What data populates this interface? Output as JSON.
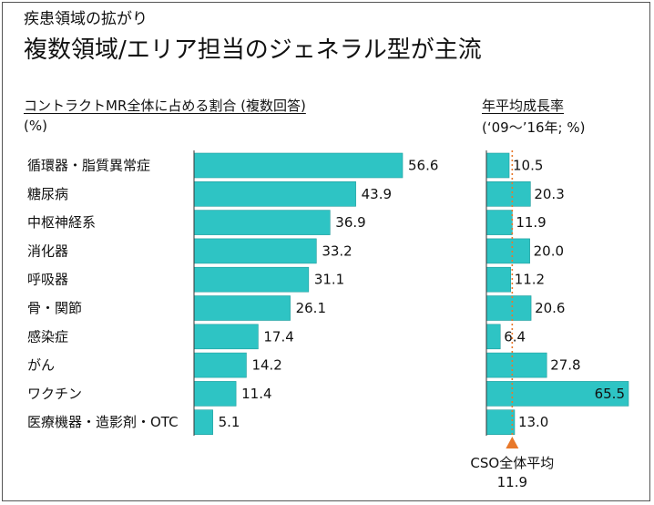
{
  "subtitle": "疾患領域の拡がり",
  "title": "複数領域/エリア担当のジェネラル型が主流",
  "left_header": "コントラクトMR全体に占める割合 (複数回答)",
  "left_unit": "(%)",
  "right_header": "年平均成長率",
  "right_unit": "(‘09～’16年; %)",
  "reference": {
    "label": "CSO全体平均",
    "value": 11.9
  },
  "colors": {
    "bar": "#2ec4c4",
    "bar_stroke": "#1f9d9d",
    "reference": "#e8782a"
  },
  "chart_data": [
    {
      "type": "bar",
      "orientation": "horizontal",
      "categories": [
        "循環器・脂質異常症",
        "糖尿病",
        "中枢神経系",
        "消化器",
        "呼吸器",
        "骨・関節",
        "感染症",
        "がん",
        "ワクチン",
        "医療機器・造影剤・OTC"
      ],
      "values": [
        56.6,
        43.9,
        36.9,
        33.2,
        31.1,
        26.1,
        17.4,
        14.2,
        11.4,
        5.1
      ],
      "title": "コントラクトMR全体に占める割合 (複数回答)",
      "ylabel": "(%)",
      "xlim": [
        0,
        60
      ]
    },
    {
      "type": "bar",
      "orientation": "horizontal",
      "categories": [
        "循環器・脂質異常症",
        "糖尿病",
        "中枢神経系",
        "消化器",
        "呼吸器",
        "骨・関節",
        "感染症",
        "がん",
        "ワクチン",
        "医療機器・造影剤・OTC"
      ],
      "values": [
        10.5,
        20.3,
        11.9,
        20.0,
        11.2,
        20.6,
        6.4,
        27.8,
        65.5,
        13.0
      ],
      "title": "年平均成長率",
      "ylabel": "(‘09～’16年; %)",
      "reference_line": {
        "label": "CSO全体平均",
        "value": 11.9
      },
      "xlim": [
        0,
        65.5
      ]
    }
  ]
}
